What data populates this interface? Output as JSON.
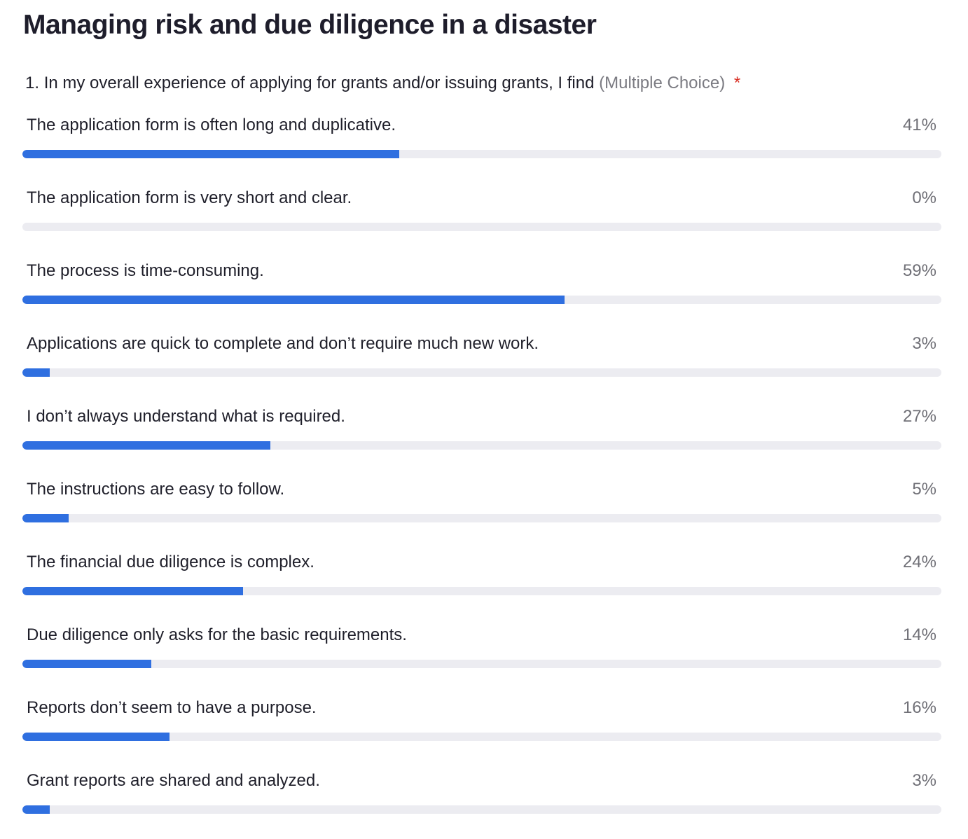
{
  "page_title": "Managing risk and due diligence in a disaster",
  "question": {
    "number": "1.",
    "text": "In my overall experience of applying for grants and/or issuing grants, I find",
    "type_label": "(Multiple Choice)",
    "required_mark": "*"
  },
  "colors": {
    "bar_fill": "#2f6fe0",
    "bar_track": "#ececf1",
    "required": "#d93025"
  },
  "options": [
    {
      "label": "The application form is often long and duplicative.",
      "percent_label": "41%",
      "fill_fraction": 0.41
    },
    {
      "label": "The application form is very short and clear.",
      "percent_label": "0%",
      "fill_fraction": 0.0
    },
    {
      "label": "The process is time-consuming.",
      "percent_label": "59%",
      "fill_fraction": 0.59
    },
    {
      "label": "Applications are quick to complete and don’t require much new work.",
      "percent_label": "3%",
      "fill_fraction": 0.03
    },
    {
      "label": "I don’t always understand what is required.",
      "percent_label": "27%",
      "fill_fraction": 0.27
    },
    {
      "label": "The instructions are easy to follow.",
      "percent_label": "5%",
      "fill_fraction": 0.05
    },
    {
      "label": "The financial due diligence is complex.",
      "percent_label": "24%",
      "fill_fraction": 0.24
    },
    {
      "label": "Due diligence only asks for the basic requirements.",
      "percent_label": "14%",
      "fill_fraction": 0.14
    },
    {
      "label": "Reports don’t seem to have a purpose.",
      "percent_label": "16%",
      "fill_fraction": 0.16
    },
    {
      "label": "Grant reports are shared and analyzed.",
      "percent_label": "3%",
      "fill_fraction": 0.03
    }
  ]
}
